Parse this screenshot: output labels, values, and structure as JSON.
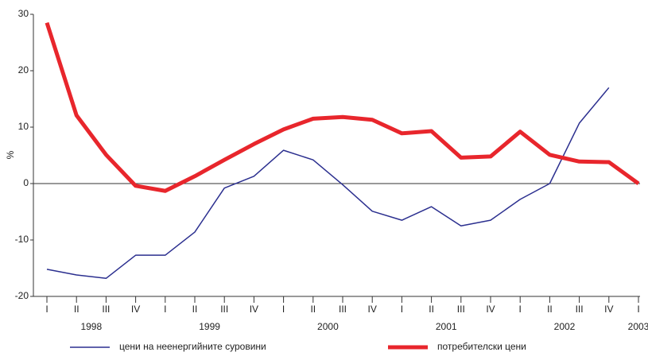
{
  "chart_data": {
    "type": "line",
    "y_label": "%",
    "categories": [
      "I",
      "II",
      "III",
      "IV",
      "I",
      "II",
      "III",
      "IV",
      "I",
      "II",
      "III",
      "IV",
      "I",
      "II",
      "III",
      "IV",
      "I",
      "II",
      "III",
      "IV",
      "I"
    ],
    "years": [
      "1998",
      "1999",
      "2000",
      "2001",
      "2002",
      "2003"
    ],
    "series": [
      {
        "name": "цени на неенергийните суровини",
        "color": "#2b2f8f",
        "width": 1.5,
        "values": [
          -15.2,
          -16.2,
          -16.8,
          -12.7,
          -12.7,
          -8.6,
          -0.8,
          1.3,
          5.9,
          4.2,
          -0.2,
          -4.9,
          -6.5,
          -4.1,
          -7.5,
          -6.5,
          -2.8,
          0,
          10.7,
          17.0,
          null
        ]
      },
      {
        "name": "потребителски цени",
        "color": "#e8262c",
        "width": 5,
        "values": [
          28.5,
          12.1,
          5.1,
          -0.4,
          -1.3,
          1.3,
          4.2,
          7.0,
          9.6,
          11.5,
          11.8,
          11.3,
          8.9,
          9.3,
          4.6,
          4.8,
          9.2,
          5.1,
          3.9,
          3.8,
          0
        ]
      }
    ],
    "ylim": [
      -20,
      30
    ],
    "yticks": [
      30,
      20,
      10,
      0,
      -10,
      -20
    ]
  }
}
